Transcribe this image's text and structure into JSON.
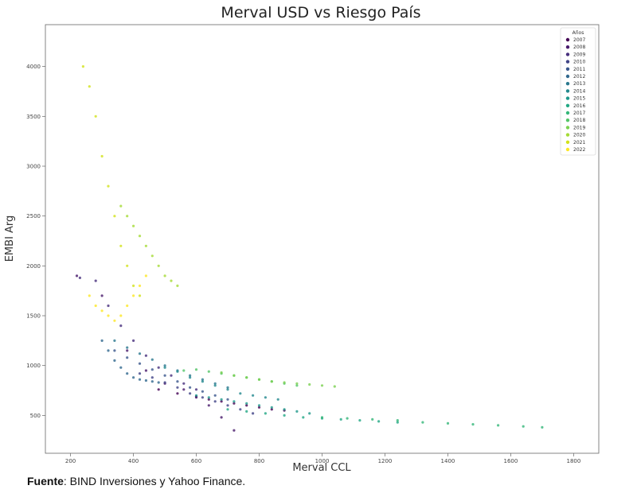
{
  "chart_data": {
    "type": "scatter",
    "title": "Merval USD vs Riesgo País",
    "xlabel": "Merval CCL",
    "ylabel": "EMBI Arg",
    "xlim": [
      120,
      1880
    ],
    "ylim": [
      120,
      4420
    ],
    "x_ticks": [
      200,
      400,
      600,
      800,
      1000,
      1200,
      1400,
      1600,
      1800
    ],
    "y_ticks": [
      500,
      1000,
      1500,
      2000,
      2500,
      3000,
      3500,
      4000
    ],
    "grid": false,
    "legend": {
      "title": "Años",
      "position": "top-right"
    },
    "colormap": "viridis",
    "series": [
      {
        "name": "2007",
        "color": "#440154",
        "x": [
          480,
          540,
          600,
          640,
          680,
          720,
          760,
          800,
          840,
          880
        ],
        "y": [
          760,
          720,
          690,
          660,
          640,
          620,
          600,
          580,
          560,
          550
        ]
      },
      {
        "name": "2008",
        "color": "#481a6c",
        "x": [
          220,
          300,
          380,
          440,
          500,
          560,
          600,
          640,
          680,
          720
        ],
        "y": [
          1900,
          1700,
          1150,
          950,
          820,
          760,
          680,
          600,
          480,
          350
        ]
      },
      {
        "name": "2009",
        "color": "#472f7d",
        "x": [
          230,
          280,
          320,
          360,
          400,
          440,
          480,
          520,
          560,
          600
        ],
        "y": [
          1880,
          1850,
          1600,
          1400,
          1250,
          1100,
          980,
          900,
          820,
          760
        ]
      },
      {
        "name": "2010",
        "color": "#414487",
        "x": [
          420,
          460,
          500,
          540,
          580,
          620,
          660,
          700,
          740,
          780
        ],
        "y": [
          920,
          880,
          830,
          780,
          720,
          680,
          640,
          600,
          560,
          520
        ]
      },
      {
        "name": "2011",
        "color": "#39568c",
        "x": [
          340,
          380,
          420,
          460,
          500,
          540,
          580,
          620,
          660,
          700
        ],
        "y": [
          1150,
          1080,
          1020,
          960,
          900,
          840,
          780,
          740,
          700,
          660
        ]
      },
      {
        "name": "2012",
        "color": "#31688e",
        "x": [
          300,
          320,
          340,
          360,
          380,
          400,
          420,
          440,
          460,
          480
        ],
        "y": [
          1250,
          1150,
          1050,
          980,
          920,
          880,
          860,
          850,
          840,
          830
        ]
      },
      {
        "name": "2013",
        "color": "#2a788e",
        "x": [
          340,
          380,
          420,
          460,
          500,
          540,
          580,
          620,
          660,
          700
        ],
        "y": [
          1250,
          1180,
          1120,
          1060,
          1000,
          950,
          900,
          860,
          820,
          780
        ]
      },
      {
        "name": "2014",
        "color": "#23888e",
        "x": [
          500,
          540,
          580,
          620,
          660,
          700,
          740,
          780,
          820,
          860
        ],
        "y": [
          980,
          940,
          880,
          840,
          800,
          760,
          720,
          700,
          680,
          660
        ]
      },
      {
        "name": "2015",
        "color": "#1f988b",
        "x": [
          600,
          640,
          680,
          720,
          760,
          800,
          840,
          880,
          920,
          960
        ],
        "y": [
          700,
          680,
          660,
          640,
          620,
          600,
          580,
          560,
          540,
          520
        ]
      },
      {
        "name": "2016",
        "color": "#22a884",
        "x": [
          700,
          760,
          820,
          880,
          940,
          1000,
          1060,
          1120,
          1180,
          1240
        ],
        "y": [
          560,
          540,
          520,
          500,
          480,
          470,
          460,
          450,
          440,
          430
        ]
      },
      {
        "name": "2017",
        "color": "#35b779",
        "x": [
          1000,
          1080,
          1160,
          1240,
          1320,
          1400,
          1480,
          1560,
          1640,
          1700
        ],
        "y": [
          480,
          470,
          460,
          450,
          430,
          420,
          410,
          400,
          390,
          380
        ]
      },
      {
        "name": "2018",
        "color": "#54c568",
        "x": [
          560,
          600,
          640,
          680,
          720,
          760,
          800,
          840,
          880,
          920
        ],
        "y": [
          950,
          960,
          940,
          920,
          900,
          880,
          860,
          840,
          820,
          800
        ]
      },
      {
        "name": "2019",
        "color": "#7ad151",
        "x": [
          680,
          720,
          760,
          800,
          840,
          880,
          920,
          960,
          1000,
          1040
        ],
        "y": [
          930,
          900,
          880,
          860,
          840,
          830,
          820,
          810,
          800,
          790
        ]
      },
      {
        "name": "2020",
        "color": "#a5db36",
        "x": [
          360,
          380,
          400,
          420,
          440,
          460,
          480,
          500,
          520,
          540
        ],
        "y": [
          2600,
          2500,
          2400,
          2300,
          2200,
          2100,
          2000,
          1900,
          1850,
          1800
        ]
      },
      {
        "name": "2021",
        "color": "#d2e21b",
        "x": [
          240,
          260,
          280,
          300,
          320,
          340,
          360,
          380,
          400,
          420
        ],
        "y": [
          4000,
          3800,
          3500,
          3100,
          2800,
          2500,
          2200,
          2000,
          1800,
          1700
        ]
      },
      {
        "name": "2022",
        "color": "#fde725",
        "x": [
          260,
          280,
          300,
          320,
          340,
          360,
          380,
          400,
          420,
          440
        ],
        "y": [
          1700,
          1600,
          1550,
          1500,
          1450,
          1500,
          1600,
          1700,
          1800,
          1900
        ]
      }
    ]
  },
  "source": {
    "label": "Fuente",
    "text": ": BIND Inversiones y Yahoo Finance."
  }
}
